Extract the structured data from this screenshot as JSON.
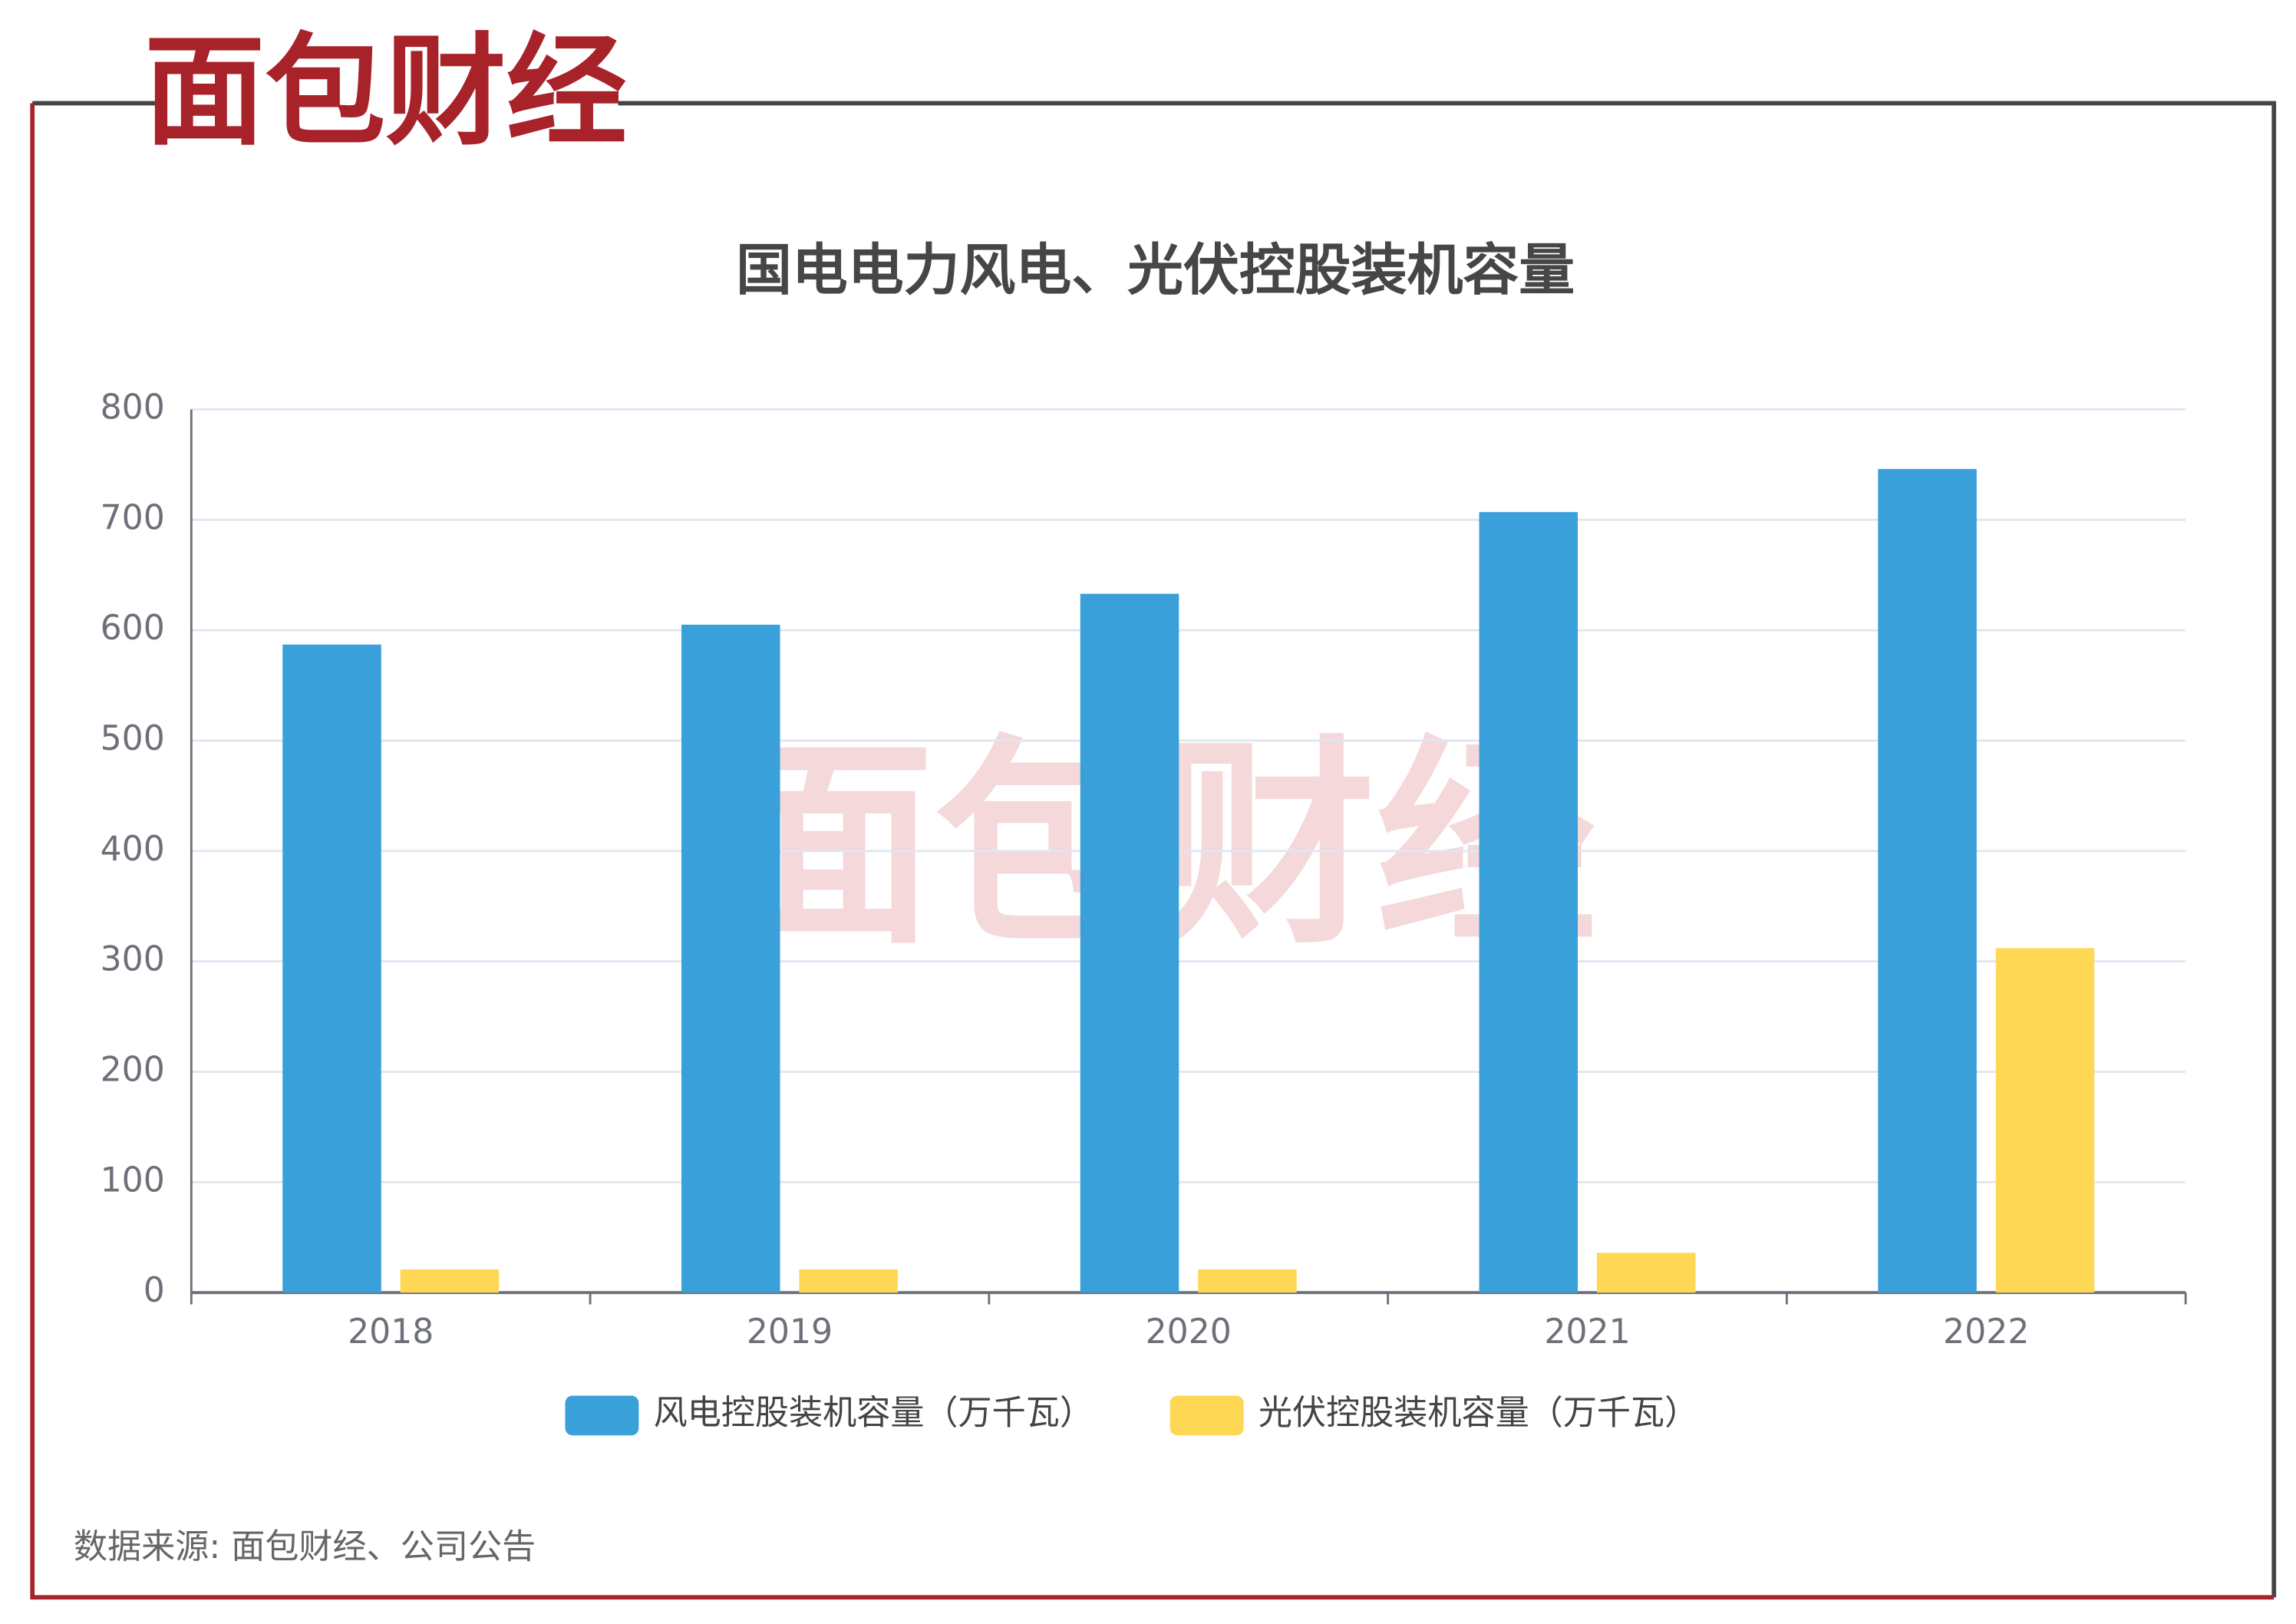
{
  "logo": "面包财经",
  "source": "数据来源: 面包财经、公司公告",
  "chart_data": {
    "type": "bar",
    "title": "国电电力风电、光伏控股装机容量",
    "categories": [
      "2018",
      "2019",
      "2020",
      "2021",
      "2022"
    ],
    "series": [
      {
        "name": "风电控股装机容量（万千瓦）",
        "color": "#3aa0da",
        "values": [
          587,
          605,
          633,
          707,
          746
        ]
      },
      {
        "name": "光伏控股装机容量（万千瓦）",
        "color": "#fed754",
        "values": [
          21,
          21,
          21,
          36,
          312
        ]
      }
    ],
    "ylim": [
      0,
      800
    ],
    "yticks": [
      0,
      100,
      200,
      300,
      400,
      500,
      600,
      700,
      800
    ],
    "grid": true,
    "legend": "bottom"
  }
}
